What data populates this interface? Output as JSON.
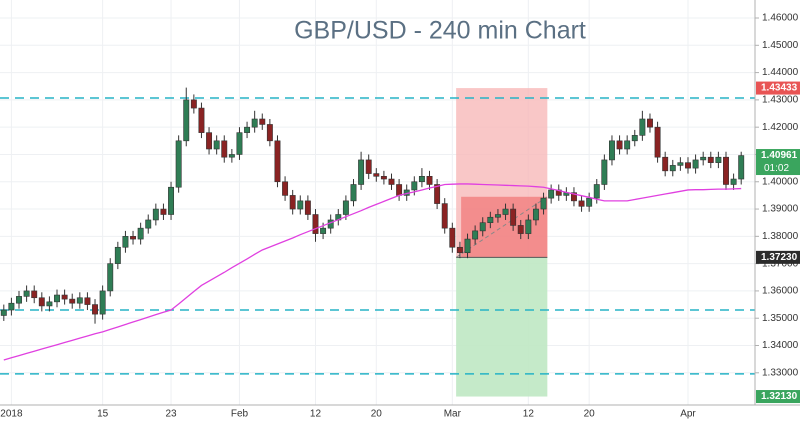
{
  "chart_data": {
    "type": "candlestick",
    "title": "GBP/USD - 240 min Chart",
    "categories": [
      null,
      "2018",
      null,
      null,
      null,
      null,
      null,
      null,
      null,
      null,
      null,
      null,
      null,
      "15",
      null,
      null,
      null,
      null,
      null,
      null,
      null,
      null,
      "23",
      null,
      null,
      null,
      null,
      null,
      null,
      null,
      null,
      "Feb",
      null,
      null,
      null,
      null,
      null,
      null,
      null,
      null,
      null,
      "12",
      null,
      null,
      null,
      null,
      null,
      null,
      null,
      "20",
      null,
      null,
      null,
      null,
      null,
      null,
      null,
      null,
      null,
      "Mar",
      null,
      null,
      null,
      null,
      null,
      null,
      null,
      null,
      null,
      "12",
      null,
      null,
      null,
      null,
      null,
      null,
      null,
      "20",
      null,
      null,
      null,
      null,
      null,
      null,
      null,
      null,
      null,
      null,
      null,
      null,
      "Apr",
      null,
      null,
      null,
      null,
      null,
      null,
      null
    ],
    "open": [
      1.351,
      1.353,
      1.3555,
      1.358,
      1.36,
      1.3575,
      1.3545,
      1.356,
      1.3585,
      1.357,
      1.3555,
      1.3575,
      1.355,
      1.3515,
      1.36,
      1.37,
      1.376,
      1.38,
      1.379,
      1.383,
      1.386,
      1.39,
      1.388,
      1.398,
      1.415,
      1.43,
      1.427,
      1.418,
      1.412,
      1.415,
      1.409,
      1.41,
      1.418,
      1.42,
      1.423,
      1.421,
      1.415,
      1.4,
      1.395,
      1.39,
      1.393,
      1.388,
      1.381,
      1.383,
      1.386,
      1.388,
      1.393,
      1.399,
      1.408,
      1.403,
      1.402,
      1.401,
      1.399,
      1.395,
      1.397,
      1.4,
      1.402,
      1.399,
      1.392,
      1.383,
      1.376,
      1.374,
      1.379,
      1.382,
      1.385,
      1.387,
      1.388,
      1.39,
      1.384,
      1.381,
      1.386,
      1.39,
      1.394,
      1.397,
      1.395,
      1.396,
      1.393,
      1.391,
      1.394,
      1.399,
      1.408,
      1.415,
      1.412,
      1.415,
      1.417,
      1.423,
      1.42,
      1.409,
      1.404,
      1.406,
      1.407,
      1.405,
      1.408,
      1.409,
      1.407,
      1.409,
      1.399,
      1.401
    ],
    "high": [
      1.355,
      1.3575,
      1.36,
      1.362,
      1.362,
      1.3595,
      1.358,
      1.3605,
      1.3605,
      1.359,
      1.3595,
      1.3595,
      1.357,
      1.362,
      1.372,
      1.378,
      1.382,
      1.382,
      1.385,
      1.388,
      1.392,
      1.392,
      1.4,
      1.417,
      1.4345,
      1.432,
      1.429,
      1.42,
      1.417,
      1.417,
      1.412,
      1.42,
      1.422,
      1.426,
      1.425,
      1.423,
      1.417,
      1.402,
      1.397,
      1.395,
      1.395,
      1.39,
      1.385,
      1.388,
      1.39,
      1.395,
      1.401,
      1.411,
      1.41,
      1.405,
      1.404,
      1.403,
      1.401,
      1.399,
      1.402,
      1.405,
      1.404,
      1.401,
      1.394,
      1.385,
      1.378,
      1.381,
      1.384,
      1.387,
      1.389,
      1.39,
      1.392,
      1.392,
      1.386,
      1.388,
      1.392,
      1.396,
      1.399,
      1.399,
      1.398,
      1.398,
      1.395,
      1.396,
      1.401,
      1.41,
      1.417,
      1.417,
      1.417,
      1.419,
      1.426,
      1.425,
      1.422,
      1.411,
      1.408,
      1.409,
      1.409,
      1.41,
      1.411,
      1.411,
      1.411,
      1.411,
      1.403,
      1.411
    ],
    "low": [
      1.349,
      1.351,
      1.3535,
      1.356,
      1.3555,
      1.3525,
      1.3525,
      1.354,
      1.355,
      1.3535,
      1.3535,
      1.353,
      1.348,
      1.3495,
      1.358,
      1.368,
      1.374,
      1.377,
      1.377,
      1.381,
      1.384,
      1.386,
      1.386,
      1.396,
      1.413,
      1.425,
      1.416,
      1.41,
      1.41,
      1.407,
      1.407,
      1.408,
      1.416,
      1.418,
      1.419,
      1.413,
      1.398,
      1.393,
      1.388,
      1.388,
      1.386,
      1.378,
      1.379,
      1.381,
      1.384,
      1.386,
      1.391,
      1.397,
      1.401,
      1.4,
      1.399,
      1.397,
      1.393,
      1.393,
      1.395,
      1.398,
      1.397,
      1.39,
      1.381,
      1.374,
      1.372,
      1.372,
      1.377,
      1.38,
      1.383,
      1.385,
      1.386,
      1.382,
      1.379,
      1.379,
      1.384,
      1.388,
      1.392,
      1.393,
      1.393,
      1.391,
      1.389,
      1.389,
      1.392,
      1.397,
      1.406,
      1.41,
      1.41,
      1.413,
      1.415,
      1.418,
      1.407,
      1.402,
      1.402,
      1.404,
      1.403,
      1.403,
      1.406,
      1.405,
      1.405,
      1.397,
      1.397,
      1.399
    ],
    "close": [
      1.353,
      1.3555,
      1.358,
      1.36,
      1.3575,
      1.3545,
      1.356,
      1.3585,
      1.357,
      1.3555,
      1.3575,
      1.355,
      1.3515,
      1.36,
      1.37,
      1.376,
      1.38,
      1.379,
      1.383,
      1.386,
      1.39,
      1.388,
      1.398,
      1.415,
      1.43,
      1.427,
      1.418,
      1.412,
      1.415,
      1.409,
      1.41,
      1.418,
      1.42,
      1.423,
      1.421,
      1.415,
      1.4,
      1.395,
      1.39,
      1.393,
      1.388,
      1.381,
      1.383,
      1.386,
      1.388,
      1.393,
      1.399,
      1.408,
      1.403,
      1.402,
      1.401,
      1.399,
      1.395,
      1.397,
      1.4,
      1.402,
      1.399,
      1.392,
      1.383,
      1.376,
      1.374,
      1.379,
      1.382,
      1.385,
      1.387,
      1.388,
      1.39,
      1.384,
      1.381,
      1.386,
      1.39,
      1.394,
      1.397,
      1.395,
      1.396,
      1.393,
      1.391,
      1.394,
      1.399,
      1.408,
      1.415,
      1.412,
      1.415,
      1.417,
      1.423,
      1.42,
      1.409,
      1.404,
      1.406,
      1.407,
      1.405,
      1.408,
      1.409,
      1.407,
      1.409,
      1.399,
      1.401,
      1.4096
    ],
    "up_color": "#2f7d55",
    "down_color": "#8a2323",
    "moving_average": {
      "color": "#e040e0",
      "values": [
        1.3347,
        1.3355,
        1.3363,
        1.3371,
        1.3379,
        1.3387,
        1.3395,
        1.3403,
        1.3411,
        1.3419,
        1.3427,
        1.3435,
        1.3443,
        1.345,
        1.3459,
        1.3468,
        1.3477,
        1.3486,
        1.3495,
        1.3504,
        1.3513,
        1.3522,
        1.353,
        1.3552,
        1.3575,
        1.3598,
        1.362,
        1.3636,
        1.3652,
        1.3668,
        1.3685,
        1.3701,
        1.3717,
        1.3734,
        1.375,
        1.3761,
        1.3772,
        1.3783,
        1.3794,
        1.3806,
        1.3817,
        1.3828,
        1.3839,
        1.385,
        1.3861,
        1.3872,
        1.3883,
        1.3894,
        1.3906,
        1.3917,
        1.3928,
        1.3939,
        1.395,
        1.3957,
        1.3963,
        1.397,
        1.3977,
        1.3983,
        1.399,
        1.3991,
        1.3992,
        1.3992,
        1.3991,
        1.399,
        1.3989,
        1.3988,
        1.3987,
        1.3986,
        1.3985,
        1.3984,
        1.3982,
        1.398,
        1.3974,
        1.3968,
        1.3961,
        1.3955,
        1.3949,
        1.3943,
        1.3936,
        1.393,
        1.393,
        1.393,
        1.393,
        1.3935,
        1.394,
        1.3945,
        1.395,
        1.3955,
        1.396,
        1.3965,
        1.397,
        1.3971,
        1.3971,
        1.3972,
        1.3973,
        1.3973,
        1.3974,
        1.3975
      ]
    },
    "levels": {
      "color": "#26b3c6",
      "values": [
        1.4307,
        1.353,
        1.3296
      ]
    },
    "position": {
      "entry": 1.3723,
      "stop": 1.43433,
      "target": 1.3213,
      "current": 1.3945,
      "start_index": 60,
      "end_index": 71
    },
    "price_labels": [
      {
        "value": 1.43433,
        "label": "1.43433",
        "color": "#e85454"
      },
      {
        "value": 1.40961,
        "label": "1.40961",
        "sublabel": "01:02",
        "color": "#3aa55e"
      },
      {
        "value": 1.3723,
        "label": "1.37230",
        "color": "#2b2b2b"
      },
      {
        "value": 1.3213,
        "label": "1.32130",
        "color": "#3aa55e"
      }
    ],
    "ylim": [
      1.3182,
      1.4666
    ],
    "yticks": [
      {
        "value": 1.33,
        "label": "1.33000"
      },
      {
        "value": 1.34,
        "label": "1.34000"
      },
      {
        "value": 1.35,
        "label": "1.35000"
      },
      {
        "value": 1.36,
        "label": "1.36000"
      },
      {
        "value": 1.37,
        "label": "1.37000"
      },
      {
        "value": 1.38,
        "label": "1.38000"
      },
      {
        "value": 1.39,
        "label": "1.39000"
      },
      {
        "value": 1.4,
        "label": "1.40000"
      },
      {
        "value": 1.41,
        "label": "1.41000"
      },
      {
        "value": 1.42,
        "label": "1.42000"
      },
      {
        "value": 1.43,
        "label": "1.43000"
      },
      {
        "value": 1.44,
        "label": "1.44000"
      },
      {
        "value": 1.45,
        "label": "1.45000"
      },
      {
        "value": 1.46,
        "label": "1.46000"
      }
    ],
    "grid": true
  }
}
